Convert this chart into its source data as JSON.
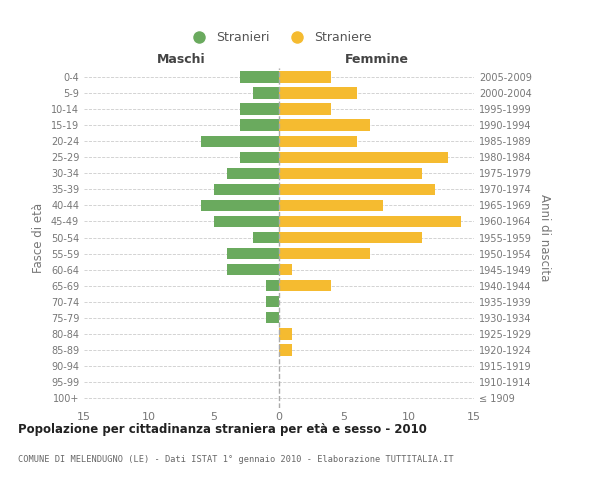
{
  "age_groups": [
    "100+",
    "95-99",
    "90-94",
    "85-89",
    "80-84",
    "75-79",
    "70-74",
    "65-69",
    "60-64",
    "55-59",
    "50-54",
    "45-49",
    "40-44",
    "35-39",
    "30-34",
    "25-29",
    "20-24",
    "15-19",
    "10-14",
    "5-9",
    "0-4"
  ],
  "birth_years": [
    "≤ 1909",
    "1910-1914",
    "1915-1919",
    "1920-1924",
    "1925-1929",
    "1930-1934",
    "1935-1939",
    "1940-1944",
    "1945-1949",
    "1950-1954",
    "1955-1959",
    "1960-1964",
    "1965-1969",
    "1970-1974",
    "1975-1979",
    "1980-1984",
    "1985-1989",
    "1990-1994",
    "1995-1999",
    "2000-2004",
    "2005-2009"
  ],
  "males": [
    0,
    0,
    0,
    0,
    0,
    1,
    1,
    1,
    4,
    4,
    2,
    5,
    6,
    5,
    4,
    3,
    6,
    3,
    3,
    2,
    3
  ],
  "females": [
    0,
    0,
    0,
    1,
    1,
    0,
    0,
    4,
    1,
    7,
    11,
    14,
    8,
    12,
    11,
    13,
    6,
    7,
    4,
    6,
    4
  ],
  "male_color": "#6aaa5e",
  "female_color": "#f5bb30",
  "male_label": "Stranieri",
  "female_label": "Straniere",
  "title": "Popolazione per cittadinanza straniera per età e sesso - 2010",
  "subtitle": "COMUNE DI MELENDUGNO (LE) - Dati ISTAT 1° gennaio 2010 - Elaborazione TUTTITALIA.IT",
  "ylabel_left": "Fasce di età",
  "ylabel_right": "Anni di nascita",
  "xlabel_left": "Maschi",
  "xlabel_right": "Femmine",
  "xlim": 15,
  "background_color": "#ffffff",
  "grid_color": "#cccccc"
}
